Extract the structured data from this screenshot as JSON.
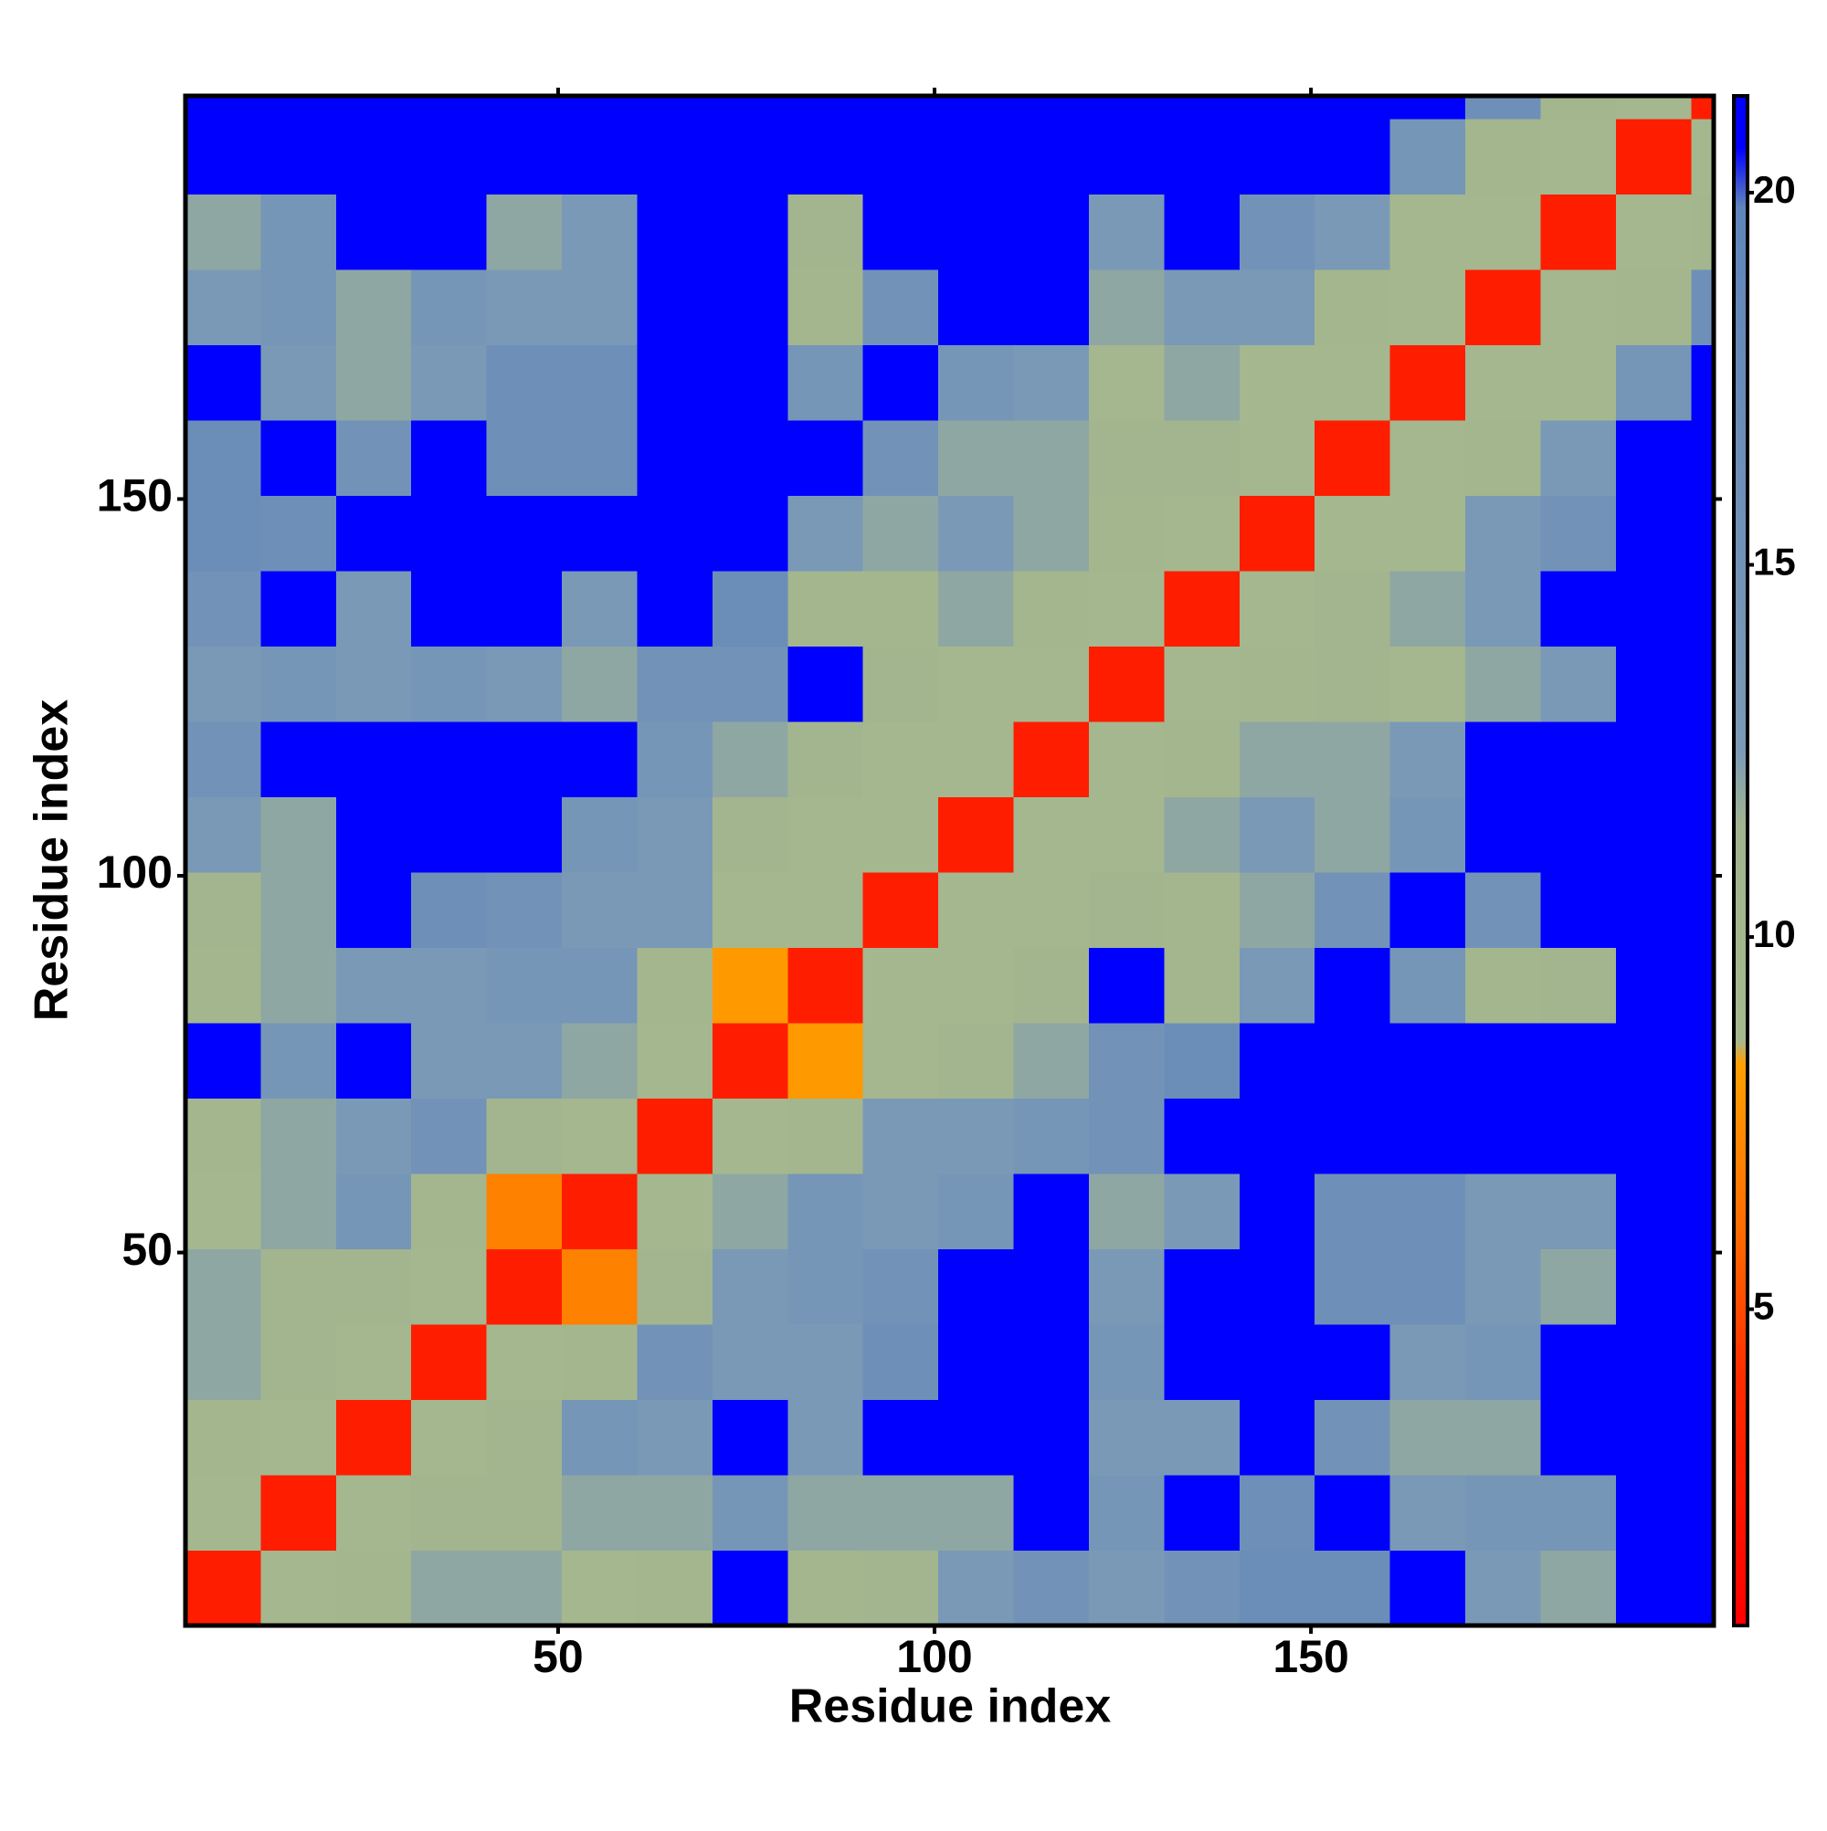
{
  "chart_data": {
    "type": "heatmap",
    "xlabel": "Residue index",
    "ylabel": "Residue index",
    "xlim": [
      0.5,
      203.5
    ],
    "ylim": [
      0.5,
      203.5
    ],
    "xticks": [
      50,
      100,
      150
    ],
    "yticks": [
      50,
      100,
      150
    ],
    "xbins": [
      0.5,
      10.5,
      20.5,
      30.5,
      40.5,
      50.5,
      60.5,
      70.5,
      80.5,
      90.5,
      100.5,
      110.5,
      120.5,
      130.5,
      140.5,
      150.5,
      160.5,
      170.5,
      180.5,
      190.5,
      200.5,
      203.5
    ],
    "ybins": [
      0.5,
      10.5,
      20.5,
      30.5,
      40.5,
      50.5,
      60.5,
      70.5,
      80.5,
      90.5,
      100.5,
      110.5,
      120.5,
      130.5,
      140.5,
      150.5,
      160.5,
      170.5,
      180.5,
      190.5,
      200.5,
      203.5
    ],
    "values": [
      [
        3,
        9,
        10,
        12,
        12,
        9,
        10,
        21,
        10,
        11,
        13,
        15,
        13,
        15,
        17,
        17,
        21,
        13,
        12,
        21,
        21
      ],
      [
        9,
        3,
        9,
        11,
        11,
        12,
        12,
        14,
        12,
        12,
        12,
        21,
        14,
        21,
        16,
        21,
        13,
        14,
        14,
        21,
        21
      ],
      [
        10,
        9,
        3,
        9,
        11,
        14,
        13,
        21,
        13,
        21,
        21,
        21,
        13,
        13,
        21,
        15,
        12,
        12,
        21,
        21,
        21
      ],
      [
        12,
        11,
        9,
        3,
        9,
        10,
        15,
        13,
        13,
        16,
        21,
        21,
        14,
        21,
        21,
        21,
        13,
        14,
        21,
        21,
        21
      ],
      [
        12,
        11,
        11,
        9,
        3,
        7,
        11,
        13,
        14,
        15,
        21,
        21,
        13,
        21,
        21,
        16,
        16,
        13,
        12,
        21,
        21
      ],
      [
        9,
        12,
        14,
        10,
        7,
        3,
        9,
        12,
        14,
        13,
        14,
        21,
        12,
        13,
        21,
        16,
        16,
        13,
        13,
        21,
        21
      ],
      [
        10,
        12,
        13,
        15,
        11,
        9,
        3,
        9,
        10,
        13,
        13,
        14,
        15,
        21,
        21,
        21,
        21,
        21,
        21,
        21,
        21
      ],
      [
        21,
        14,
        21,
        13,
        13,
        12,
        9,
        3,
        8,
        9,
        11,
        12,
        15,
        17,
        21,
        21,
        21,
        21,
        21,
        21,
        21
      ],
      [
        10,
        12,
        13,
        13,
        14,
        14,
        10,
        8,
        3,
        9,
        9,
        11,
        21,
        10,
        13,
        21,
        14,
        10,
        11,
        21,
        21
      ],
      [
        11,
        12,
        21,
        16,
        15,
        13,
        13,
        9,
        9,
        3,
        9,
        9,
        11,
        10,
        12,
        15,
        21,
        15,
        21,
        21,
        21
      ],
      [
        13,
        12,
        21,
        21,
        21,
        14,
        13,
        11,
        9,
        9,
        3,
        9,
        9,
        12,
        13,
        12,
        14,
        21,
        21,
        21,
        21
      ],
      [
        15,
        21,
        21,
        21,
        21,
        21,
        14,
        12,
        11,
        9,
        9,
        3,
        9,
        10,
        12,
        12,
        13,
        21,
        21,
        21,
        21
      ],
      [
        13,
        14,
        13,
        14,
        13,
        12,
        15,
        15,
        21,
        11,
        9,
        9,
        3,
        9,
        10,
        11,
        9,
        12,
        13,
        21,
        21
      ],
      [
        15,
        21,
        13,
        21,
        21,
        13,
        21,
        17,
        10,
        10,
        12,
        10,
        9,
        3,
        9,
        11,
        12,
        13,
        21,
        21,
        21
      ],
      [
        17,
        16,
        21,
        21,
        21,
        21,
        21,
        21,
        13,
        12,
        13,
        12,
        10,
        9,
        3,
        9,
        9,
        13,
        15,
        21,
        21
      ],
      [
        17,
        21,
        15,
        21,
        16,
        16,
        21,
        21,
        21,
        15,
        12,
        12,
        11,
        11,
        9,
        3,
        9,
        10,
        13,
        21,
        21
      ],
      [
        21,
        13,
        12,
        13,
        16,
        16,
        21,
        21,
        14,
        21,
        14,
        13,
        9,
        12,
        9,
        9,
        3,
        9,
        9,
        14,
        21
      ],
      [
        13,
        14,
        12,
        14,
        13,
        13,
        21,
        21,
        10,
        15,
        21,
        21,
        12,
        13,
        13,
        10,
        9,
        3,
        9,
        10,
        16
      ],
      [
        12,
        14,
        21,
        21,
        12,
        13,
        21,
        21,
        11,
        21,
        21,
        21,
        13,
        21,
        15,
        13,
        9,
        9,
        3,
        9,
        10
      ],
      [
        21,
        21,
        21,
        21,
        21,
        21,
        21,
        21,
        21,
        21,
        21,
        21,
        21,
        21,
        21,
        21,
        14,
        10,
        9,
        3,
        9
      ],
      [
        21,
        21,
        21,
        21,
        21,
        21,
        21,
        21,
        21,
        21,
        21,
        21,
        21,
        21,
        21,
        21,
        21,
        16,
        10,
        9,
        3
      ]
    ],
    "zlim": [
      0.75,
      21.3
    ],
    "zticks": [
      5,
      10,
      15,
      20
    ],
    "colorscale": [
      [
        0.75,
        "#ff0000"
      ],
      [
        4,
        "#ff2a00"
      ],
      [
        6,
        "#ff6a00"
      ],
      [
        8.3,
        "#ffa000"
      ],
      [
        8.6,
        "#a6b88e"
      ],
      [
        11.5,
        "#a2b48f"
      ],
      [
        12.5,
        "#7c9ab6"
      ],
      [
        19.8,
        "#5f86ba"
      ],
      [
        20.6,
        "#0000ff"
      ],
      [
        21.3,
        "#0000ff"
      ]
    ],
    "frame": "#000000"
  }
}
